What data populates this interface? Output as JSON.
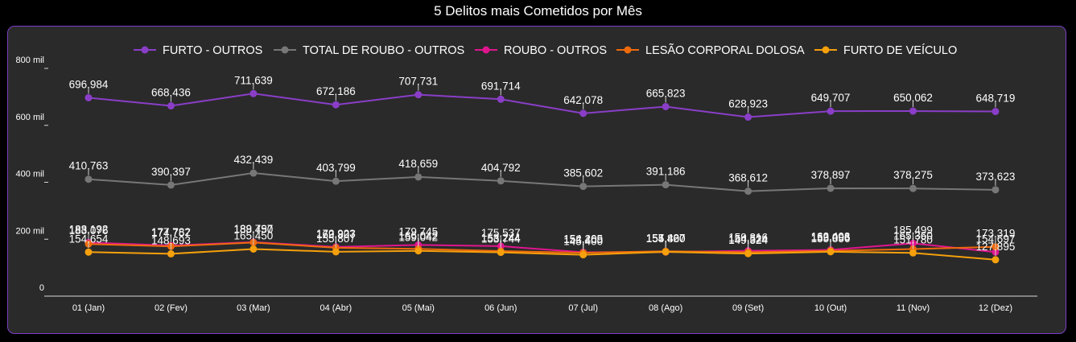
{
  "chart_data": {
    "type": "line",
    "title": "5 Delitos mais Cometidos por Mês",
    "categories": [
      "01 (Jan)",
      "02 (Fev)",
      "03 (Mar)",
      "04 (Abr)",
      "05 (Mai)",
      "06 (Jun)",
      "07 (Jul)",
      "08 (Ago)",
      "09 (Set)",
      "10 (Out)",
      "11 (Nov)",
      "12 (Dez)"
    ],
    "y_ticks": [
      {
        "value": 0,
        "label": "0"
      },
      {
        "value": 200000,
        "label": "200 mil"
      },
      {
        "value": 400000,
        "label": "400 mil"
      },
      {
        "value": 600000,
        "label": "600 mil"
      },
      {
        "value": 800000,
        "label": "800 mil"
      }
    ],
    "ylim": [
      0,
      800000
    ],
    "grid": false,
    "legend_position": "top-center",
    "series": [
      {
        "name": "FURTO - OUTROS",
        "color": "#8a3ec8",
        "values": [
          696984,
          668436,
          711639,
          672186,
          707731,
          691714,
          642078,
          665823,
          628923,
          649707,
          650062,
          648719
        ],
        "labels": [
          "696.984",
          "668.436",
          "711.639",
          "672.186",
          "707.731",
          "691.714",
          "642.078",
          "665.823",
          "628.923",
          "649.707",
          "650.062",
          "648.719"
        ]
      },
      {
        "name": "TOTAL DE ROUBO - OUTROS",
        "color": "#777777",
        "values": [
          410763,
          390397,
          432439,
          403799,
          418659,
          404792,
          385602,
          391186,
          368612,
          378897,
          378275,
          373623
        ],
        "labels": [
          "410.763",
          "390.397",
          "432.439",
          "403.799",
          "418.659",
          "404.792",
          "385.602",
          "391.186",
          "368.612",
          "378.897",
          "378.275",
          "373.623"
        ]
      },
      {
        "name": "ROUBO - OUTROS",
        "color": "#e0158e",
        "values": [
          188192,
          177782,
          189797,
          172923,
          179745,
          175537,
          154205,
          154800,
          159316,
          162403,
          185499,
          154697
        ],
        "labels": [
          "188.192",
          "177.782",
          "189.797",
          "172.923",
          "179.745",
          "175.537",
          "154.205",
          "154.800",
          "159.316",
          "162.403",
          "185.499",
          "154.697"
        ]
      },
      {
        "name": "LESÃO CORPORAL DOLOSA",
        "color": "#ee6a0c",
        "values": [
          183076,
          174757,
          188450,
          169807,
          166042,
          158244,
          152469,
          157427,
          154524,
          159096,
          165360,
          173319
        ],
        "labels": [
          "183.076",
          "174.757",
          "188.450",
          "169.807",
          "166.042",
          "158.244",
          "152.469",
          "157.427",
          "154.524",
          "159.096",
          "165.360",
          "173.319"
        ]
      },
      {
        "name": "FURTO DE VEÍCULO",
        "color": "#f5a00c",
        "values": [
          154654,
          148693,
          165450,
          155807,
          159042,
          153744,
          145400,
          155460,
          149324,
          155856,
          151780,
          127895
        ],
        "labels": [
          "154.654",
          "148.693",
          "165.450",
          "155.807",
          "159.042",
          "153.744",
          "145.400",
          "155.460",
          "149.324",
          "155.856",
          "151.780",
          "127.895"
        ]
      }
    ]
  }
}
